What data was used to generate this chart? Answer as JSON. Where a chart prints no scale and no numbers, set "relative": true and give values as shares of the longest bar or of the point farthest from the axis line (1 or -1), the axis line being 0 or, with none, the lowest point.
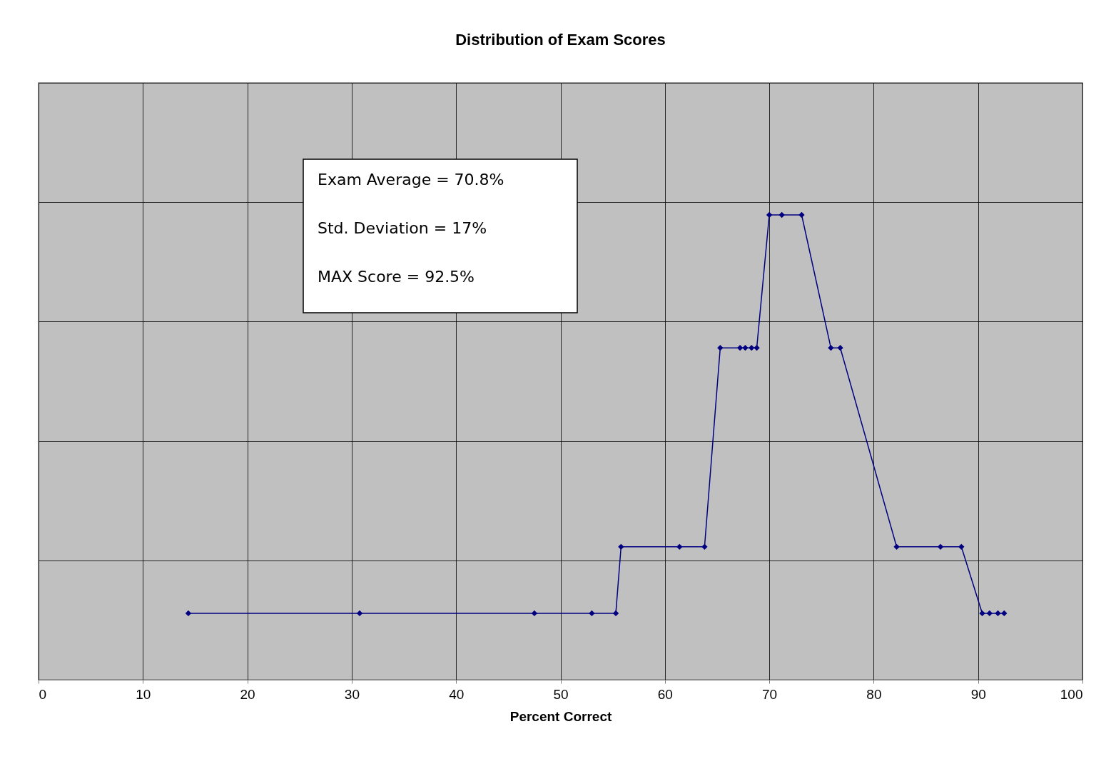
{
  "chart_data": {
    "type": "line",
    "title": "Distribution of Exam Scores",
    "xlabel": "Percent Correct",
    "x": [
      14.35,
      30.76,
      47.5,
      53.0,
      55.3,
      55.8,
      61.4,
      63.8,
      65.3,
      67.2,
      67.7,
      68.3,
      68.8,
      70.0,
      71.2,
      73.1,
      75.9,
      76.8,
      82.2,
      86.4,
      88.4,
      90.4,
      91.1,
      91.9,
      92.5
    ],
    "series": [
      {
        "color": "#000080",
        "values": [
          0.143,
          0.143,
          0.143,
          0.143,
          0.143,
          0.286,
          0.286,
          0.286,
          0.714,
          0.714,
          0.714,
          0.714,
          0.714,
          1,
          1,
          1,
          0.714,
          0.714,
          0.286,
          0.286,
          0.286,
          0.143,
          0.143,
          0.143,
          0.143
        ]
      }
    ],
    "relative": true,
    "xlim": [
      0,
      100
    ],
    "xticks": [
      0,
      10,
      20,
      30,
      40,
      50,
      60,
      70,
      80,
      90,
      100
    ],
    "grid": true,
    "marker": "diamond",
    "line_style": "solid",
    "annotations": [
      "Exam Average = 70.8%",
      "Std. Deviation = 17%",
      "MAX Score = 92.5%"
    ]
  }
}
